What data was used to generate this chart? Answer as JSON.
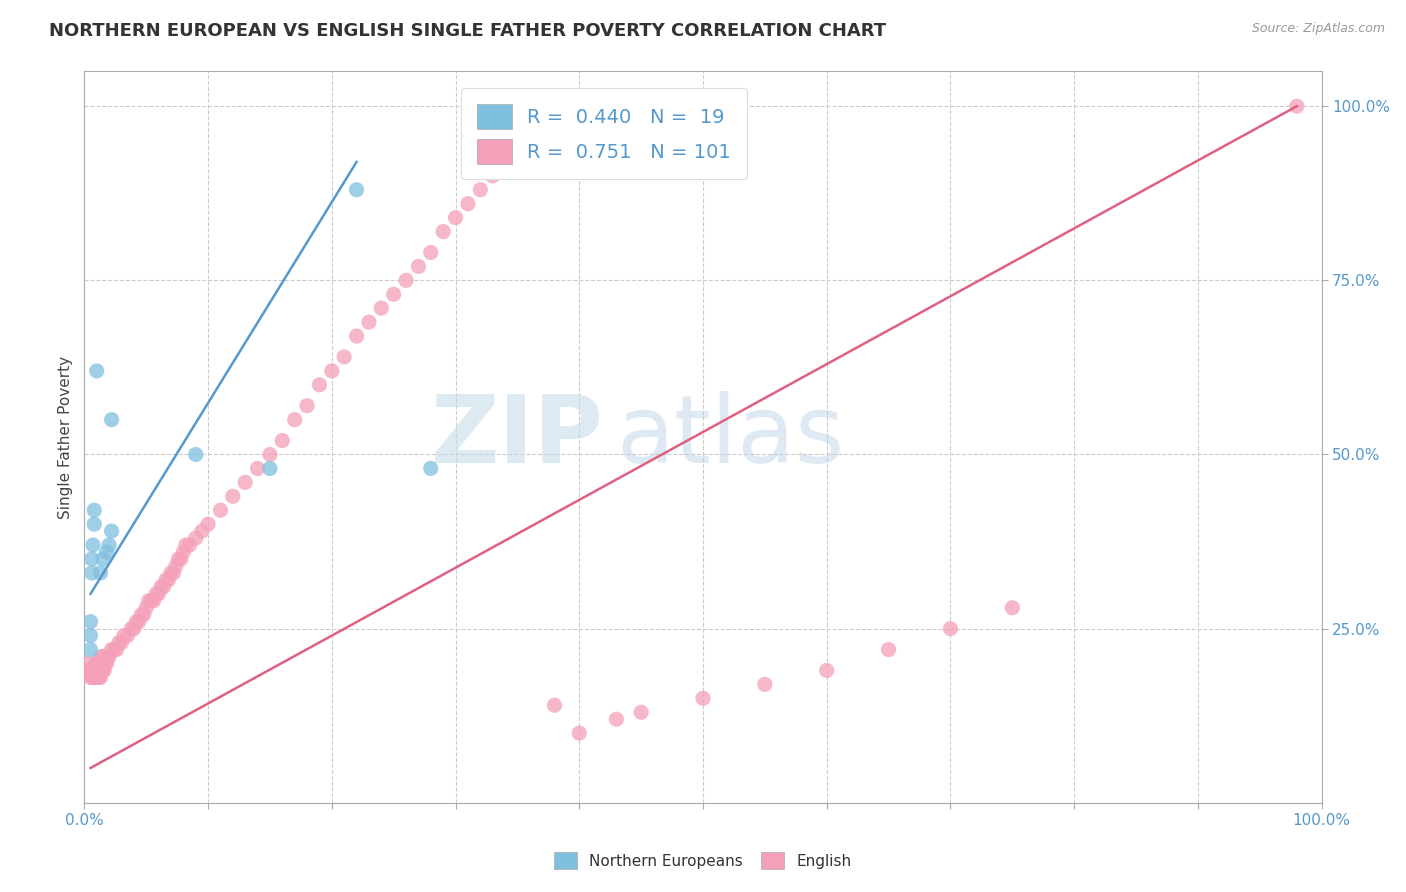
{
  "title": "NORTHERN EUROPEAN VS ENGLISH SINGLE FATHER POVERTY CORRELATION CHART",
  "source": "Source: ZipAtlas.com",
  "ylabel": "Single Father Poverty",
  "watermark_zip": "ZIP",
  "watermark_atlas": "atlas",
  "blue_R": 0.44,
  "blue_N": 19,
  "pink_R": 0.751,
  "pink_N": 101,
  "blue_color": "#7fbfdf",
  "pink_color": "#f4a0b8",
  "blue_line_color": "#5599cc",
  "pink_line_color": "#e06080",
  "blue_scatter_x": [
    0.005,
    0.005,
    0.005,
    0.006,
    0.006,
    0.007,
    0.008,
    0.008,
    0.01,
    0.013,
    0.015,
    0.018,
    0.02,
    0.022,
    0.022,
    0.09,
    0.15,
    0.22,
    0.28
  ],
  "blue_scatter_y": [
    0.22,
    0.24,
    0.26,
    0.33,
    0.35,
    0.37,
    0.4,
    0.42,
    0.62,
    0.33,
    0.35,
    0.36,
    0.37,
    0.39,
    0.55,
    0.5,
    0.48,
    0.88,
    0.48
  ],
  "pink_scatter_x": [
    0.002,
    0.003,
    0.004,
    0.005,
    0.005,
    0.006,
    0.006,
    0.007,
    0.007,
    0.008,
    0.008,
    0.009,
    0.009,
    0.01,
    0.01,
    0.011,
    0.011,
    0.012,
    0.012,
    0.013,
    0.013,
    0.014,
    0.014,
    0.015,
    0.015,
    0.016,
    0.017,
    0.018,
    0.019,
    0.02,
    0.022,
    0.024,
    0.026,
    0.028,
    0.03,
    0.032,
    0.035,
    0.038,
    0.04,
    0.042,
    0.044,
    0.046,
    0.048,
    0.05,
    0.052,
    0.054,
    0.056,
    0.058,
    0.06,
    0.062,
    0.064,
    0.066,
    0.068,
    0.07,
    0.072,
    0.074,
    0.076,
    0.078,
    0.08,
    0.082,
    0.085,
    0.09,
    0.095,
    0.1,
    0.11,
    0.12,
    0.13,
    0.14,
    0.15,
    0.16,
    0.17,
    0.18,
    0.19,
    0.2,
    0.21,
    0.22,
    0.23,
    0.24,
    0.25,
    0.26,
    0.27,
    0.28,
    0.29,
    0.3,
    0.31,
    0.32,
    0.33,
    0.34,
    0.35,
    0.36,
    0.38,
    0.4,
    0.43,
    0.45,
    0.5,
    0.55,
    0.6,
    0.65,
    0.7,
    0.75,
    0.98
  ],
  "pink_scatter_y": [
    0.2,
    0.19,
    0.19,
    0.18,
    0.19,
    0.18,
    0.19,
    0.18,
    0.19,
    0.18,
    0.19,
    0.18,
    0.2,
    0.18,
    0.2,
    0.18,
    0.19,
    0.18,
    0.2,
    0.18,
    0.2,
    0.19,
    0.21,
    0.19,
    0.21,
    0.19,
    0.2,
    0.2,
    0.21,
    0.21,
    0.22,
    0.22,
    0.22,
    0.23,
    0.23,
    0.24,
    0.24,
    0.25,
    0.25,
    0.26,
    0.26,
    0.27,
    0.27,
    0.28,
    0.29,
    0.29,
    0.29,
    0.3,
    0.3,
    0.31,
    0.31,
    0.32,
    0.32,
    0.33,
    0.33,
    0.34,
    0.35,
    0.35,
    0.36,
    0.37,
    0.37,
    0.38,
    0.39,
    0.4,
    0.42,
    0.44,
    0.46,
    0.48,
    0.5,
    0.52,
    0.55,
    0.57,
    0.6,
    0.62,
    0.64,
    0.67,
    0.69,
    0.71,
    0.73,
    0.75,
    0.77,
    0.79,
    0.82,
    0.84,
    0.86,
    0.88,
    0.9,
    0.93,
    0.95,
    0.97,
    0.14,
    0.1,
    0.12,
    0.13,
    0.15,
    0.17,
    0.19,
    0.22,
    0.25,
    0.28,
    1.0
  ],
  "blue_line": [
    [
      0.005,
      0.3
    ],
    [
      0.22,
      0.92
    ]
  ],
  "pink_line": [
    [
      0.005,
      0.05
    ],
    [
      0.98,
      1.0
    ]
  ],
  "xlim": [
    0.0,
    1.0
  ],
  "ylim": [
    0.0,
    1.05
  ],
  "background_color": "#ffffff",
  "title_fontsize": 13,
  "tick_color": "#5599cc"
}
